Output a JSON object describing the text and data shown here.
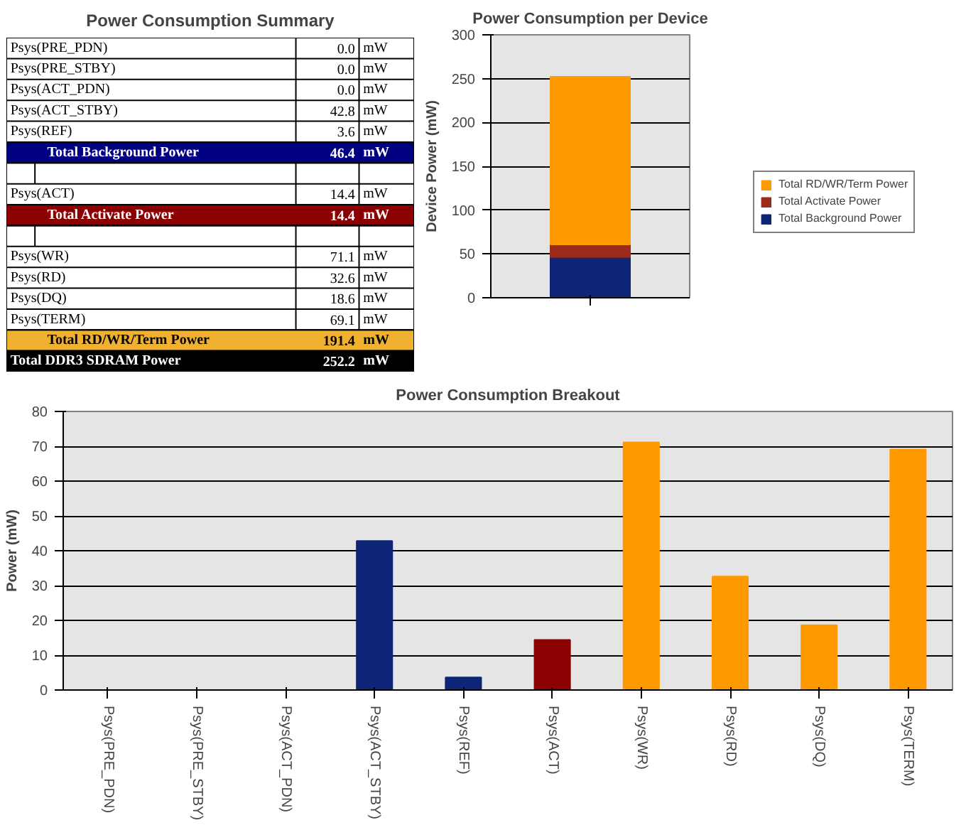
{
  "chart_data": [
    {
      "type": "other",
      "title": "Power Consumption Summary",
      "categories": [
        "Psys(PRE_PDN)",
        "Psys(PRE_STBY)",
        "Psys(ACT_PDN)",
        "Psys(ACT_STBY)",
        "Psys(REF)",
        "Total Background  Power",
        null,
        "Psys(ACT)",
        "Total Activate Power",
        null,
        "Psys(WR)",
        "Psys(RD)",
        "Psys(DQ)",
        "Psys(TERM)",
        "Total RD/WR/Term Power",
        "Total DDR3 SDRAM Power"
      ],
      "value_labels": [
        "0.0 mW",
        "0.0 mW",
        "0.0 mW",
        "42.8 mW",
        "3.6 mW",
        "46.4 mW",
        null,
        "14.4 mW",
        "14.4 mW",
        null,
        "71.1 mW",
        "32.6 mW",
        "18.6 mW",
        "69.1 mW",
        "191.4 mW",
        "252.2 mW"
      ],
      "colors": [
        "#ffffff",
        "#ffffff",
        "#ffffff",
        "#ffffff",
        "#ffffff",
        "#000080",
        "#ffffff",
        "#ffffff",
        "#8b0000",
        "#ffffff",
        "#ffffff",
        "#ffffff",
        "#ffffff",
        "#ffffff",
        "#f0b030",
        "#000000"
      ]
    },
    {
      "type": "bar",
      "title": "Power Consumption per Device",
      "categories": [
        null
      ],
      "stacked": true,
      "ylabel": "Device Power (mW)",
      "ylim": [
        0,
        300
      ],
      "yticks": [
        0,
        50,
        100,
        150,
        200,
        250,
        300
      ],
      "grid": "y",
      "legend": "right",
      "series": [
        {
          "name": "Total Background Power",
          "color": "#0c2577",
          "values": [
            46.4
          ]
        },
        {
          "name": "Total Activate Power",
          "color": "#9c2a1a",
          "values": [
            14.4
          ]
        },
        {
          "name": "Total RD/WR/Term Power",
          "color": "#ff9900",
          "values": [
            191.4
          ]
        }
      ]
    },
    {
      "type": "bar",
      "title": "Power Consumption Breakout",
      "categories": [
        "Psys(PRE_PDN)",
        "Psys(PRE_STBY)",
        "Psys(ACT_PDN)",
        "Psys(ACT_STBY)",
        "Psys(REF)",
        "Psys(ACT)",
        "Psys(WR)",
        "Psys(RD)",
        "Psys(DQ)",
        "Psys(TERM)"
      ],
      "values": [
        0,
        0,
        0,
        42.8,
        3.6,
        14.4,
        71.1,
        32.6,
        18.6,
        69.1
      ],
      "colors": [
        "#0c2577",
        "#0c2577",
        "#0c2577",
        "#0c2577",
        "#0c2577",
        "#8b0000",
        "#ff9900",
        "#ff9900",
        "#ff9900",
        "#ff9900"
      ],
      "ylabel": "Power (mW)",
      "ylim": [
        0,
        80
      ],
      "yticks": [
        0,
        10,
        20,
        30,
        40,
        50,
        60,
        70,
        80
      ],
      "grid": "y"
    }
  ]
}
